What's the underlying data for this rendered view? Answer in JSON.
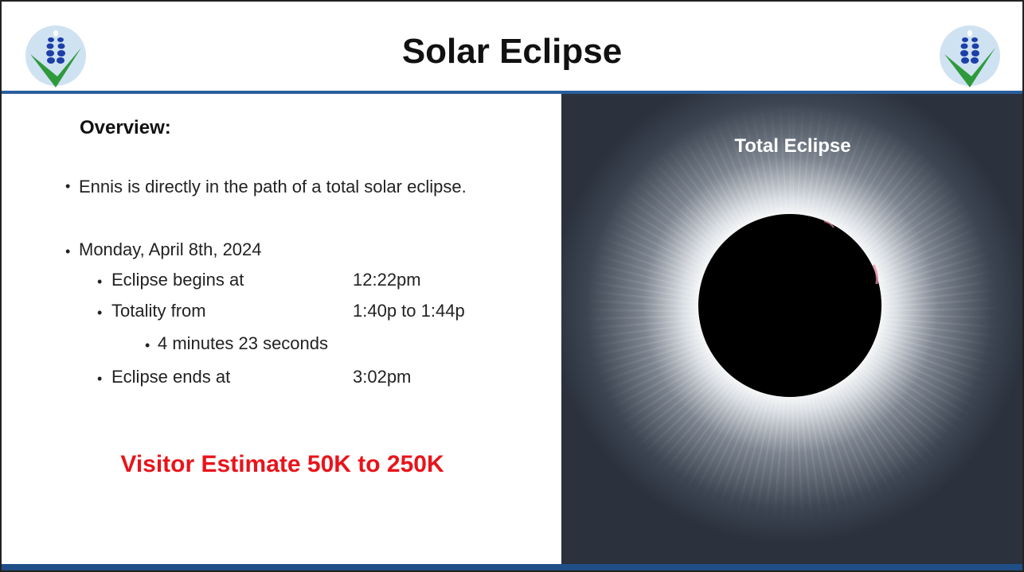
{
  "header": {
    "title": "Solar Eclipse"
  },
  "overview": {
    "heading": "Overview:",
    "items": [
      {
        "text": "Ennis is directly in the path of a total solar eclipse."
      },
      {
        "text": "Monday, April 8th, 2024",
        "items": [
          {
            "label": "Eclipse begins at",
            "time": "12:22pm"
          },
          {
            "label": "Totality from",
            "time": "1:40p to 1:44p",
            "items": [
              {
                "text": "4 minutes 23 seconds"
              }
            ]
          },
          {
            "label": "Eclipse ends at",
            "time": "3:02pm"
          }
        ]
      }
    ]
  },
  "visitor_estimate": "Visitor Estimate 50K to 250K",
  "image": {
    "caption": "Total Eclipse"
  }
}
